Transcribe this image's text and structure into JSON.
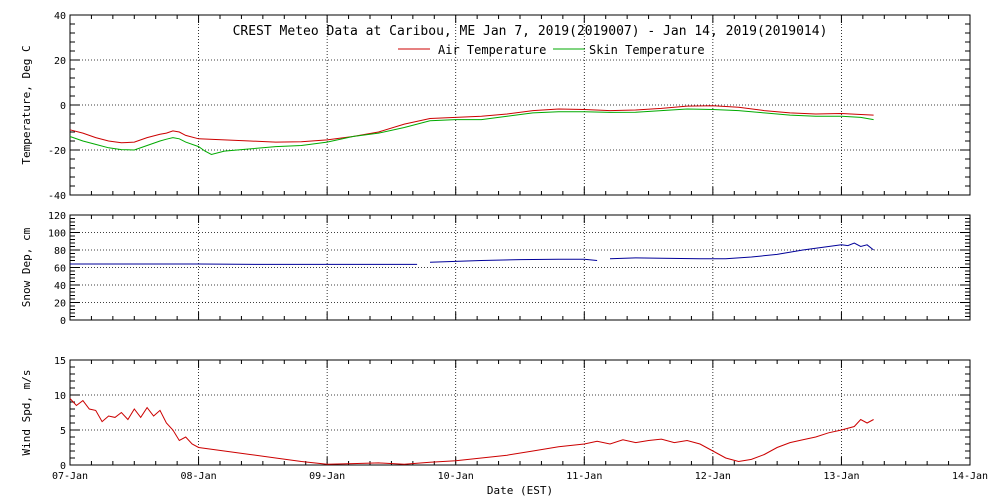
{
  "chart_data": [
    {
      "type": "line",
      "title": "CREST Meteo Data at Caribou, ME   Jan  7, 2019(2019007) - Jan 14, 2019(2019014)",
      "ylabel": "Temperature, Deg C",
      "xlabel": "",
      "x_range": [
        "2019-01-07 00:00",
        "2019-01-14 00:00"
      ],
      "ylim": [
        -40,
        40
      ],
      "yticks": [
        -40,
        -20,
        0,
        20,
        40
      ],
      "grid": true,
      "legend_placement": "top-center",
      "series": [
        {
          "name": "Air Temperature",
          "color": "#cc0000",
          "points": [
            [
              0,
              -11
            ],
            [
              0.1,
              -12.5
            ],
            [
              0.2,
              -14.5
            ],
            [
              0.3,
              -16
            ],
            [
              0.4,
              -16.8
            ],
            [
              0.5,
              -16.5
            ],
            [
              0.6,
              -14.5
            ],
            [
              0.7,
              -13
            ],
            [
              0.75,
              -12.5
            ],
            [
              0.8,
              -11.5
            ],
            [
              0.85,
              -12
            ],
            [
              0.9,
              -13.5
            ],
            [
              1.0,
              -15
            ],
            [
              1.2,
              -15.5
            ],
            [
              1.4,
              -16
            ],
            [
              1.6,
              -16.5
            ],
            [
              1.8,
              -16.3
            ],
            [
              2.0,
              -15.5
            ],
            [
              2.2,
              -14
            ],
            [
              2.4,
              -12
            ],
            [
              2.6,
              -8.5
            ],
            [
              2.8,
              -6
            ],
            [
              3.0,
              -5.5
            ],
            [
              3.2,
              -5
            ],
            [
              3.4,
              -4
            ],
            [
              3.6,
              -2.5
            ],
            [
              3.8,
              -1.8
            ],
            [
              4.0,
              -2
            ],
            [
              4.2,
              -2.5
            ],
            [
              4.4,
              -2.2
            ],
            [
              4.6,
              -1.5
            ],
            [
              4.8,
              -0.5
            ],
            [
              5.0,
              -0.3
            ],
            [
              5.2,
              -1
            ],
            [
              5.4,
              -2.5
            ],
            [
              5.6,
              -3.5
            ],
            [
              5.8,
              -4
            ],
            [
              6.0,
              -3.8
            ],
            [
              6.15,
              -4.2
            ],
            [
              6.25,
              -4.5
            ]
          ]
        },
        {
          "name": "Skin Temperature",
          "color": "#00aa00",
          "points": [
            [
              0,
              -14
            ],
            [
              0.1,
              -16
            ],
            [
              0.2,
              -17.5
            ],
            [
              0.3,
              -19
            ],
            [
              0.4,
              -19.8
            ],
            [
              0.5,
              -20
            ],
            [
              0.6,
              -18
            ],
            [
              0.7,
              -16
            ],
            [
              0.75,
              -15.2
            ],
            [
              0.8,
              -14.5
            ],
            [
              0.85,
              -15
            ],
            [
              0.9,
              -16.5
            ],
            [
              1.0,
              -18.5
            ],
            [
              1.05,
              -20.5
            ],
            [
              1.1,
              -22
            ],
            [
              1.2,
              -20.5
            ],
            [
              1.4,
              -19.5
            ],
            [
              1.6,
              -18.5
            ],
            [
              1.8,
              -18
            ],
            [
              2.0,
              -16.5
            ],
            [
              2.2,
              -14
            ],
            [
              2.4,
              -12.5
            ],
            [
              2.6,
              -10
            ],
            [
              2.8,
              -7
            ],
            [
              3.0,
              -6.5
            ],
            [
              3.2,
              -6.5
            ],
            [
              3.4,
              -5
            ],
            [
              3.6,
              -3.5
            ],
            [
              3.8,
              -3
            ],
            [
              4.0,
              -3
            ],
            [
              4.2,
              -3.3
            ],
            [
              4.4,
              -3.2
            ],
            [
              4.6,
              -2.5
            ],
            [
              4.8,
              -1.8
            ],
            [
              5.0,
              -2
            ],
            [
              5.2,
              -2.5
            ],
            [
              5.4,
              -3.5
            ],
            [
              5.6,
              -4.5
            ],
            [
              5.8,
              -5
            ],
            [
              6.0,
              -5
            ],
            [
              6.15,
              -5.5
            ],
            [
              6.25,
              -6.5
            ]
          ]
        }
      ]
    },
    {
      "type": "line",
      "ylabel": "Snow Dep, cm",
      "xlabel": "",
      "x_range": [
        "2019-01-07 00:00",
        "2019-01-14 00:00"
      ],
      "ylim": [
        0,
        120
      ],
      "yticks": [
        0,
        20,
        40,
        60,
        80,
        100,
        120
      ],
      "grid": true,
      "series": [
        {
          "color": "#000099",
          "points": [
            [
              0,
              64
            ],
            [
              0.5,
              64
            ],
            [
              1.0,
              64
            ],
            [
              1.5,
              63.5
            ],
            [
              2.0,
              63.5
            ],
            [
              2.5,
              63.5
            ],
            [
              2.7,
              63.5
            ],
            [
              2.75,
              null
            ],
            [
              2.8,
              66
            ],
            [
              3.0,
              67
            ],
            [
              3.2,
              68
            ],
            [
              3.5,
              69
            ],
            [
              3.8,
              69.5
            ],
            [
              4.0,
              69.5
            ],
            [
              4.1,
              68
            ],
            [
              4.15,
              null
            ],
            [
              4.2,
              70
            ],
            [
              4.4,
              71
            ],
            [
              4.6,
              70.5
            ],
            [
              4.9,
              70
            ],
            [
              5.1,
              70
            ],
            [
              5.3,
              72
            ],
            [
              5.5,
              75
            ],
            [
              5.7,
              80
            ],
            [
              5.8,
              82
            ],
            [
              5.9,
              84
            ],
            [
              6.0,
              86
            ],
            [
              6.05,
              85
            ],
            [
              6.1,
              88
            ],
            [
              6.15,
              84
            ],
            [
              6.2,
              86
            ],
            [
              6.25,
              80
            ]
          ]
        }
      ]
    },
    {
      "type": "line",
      "ylabel": "Wind Spd, m/s",
      "xlabel": "Date (EST)",
      "x_range": [
        "2019-01-07 00:00",
        "2019-01-14 00:00"
      ],
      "ylim": [
        0,
        15
      ],
      "yticks": [
        0,
        5,
        10,
        15
      ],
      "xtick_labels": [
        "07-Jan",
        "08-Jan",
        "09-Jan",
        "10-Jan",
        "11-Jan",
        "12-Jan",
        "13-Jan",
        "14-Jan"
      ],
      "grid": true,
      "series": [
        {
          "color": "#cc0000",
          "points": [
            [
              0,
              9.5
            ],
            [
              0.05,
              8.5
            ],
            [
              0.1,
              9.2
            ],
            [
              0.15,
              8
            ],
            [
              0.2,
              7.8
            ],
            [
              0.25,
              6.2
            ],
            [
              0.3,
              7
            ],
            [
              0.35,
              6.8
            ],
            [
              0.4,
              7.5
            ],
            [
              0.45,
              6.5
            ],
            [
              0.5,
              8
            ],
            [
              0.55,
              6.8
            ],
            [
              0.6,
              8.2
            ],
            [
              0.65,
              7
            ],
            [
              0.7,
              7.8
            ],
            [
              0.75,
              6
            ],
            [
              0.8,
              5
            ],
            [
              0.85,
              3.5
            ],
            [
              0.9,
              4
            ],
            [
              0.95,
              3
            ],
            [
              1.0,
              2.5
            ],
            [
              1.2,
              2
            ],
            [
              1.4,
              1.5
            ],
            [
              1.6,
              1
            ],
            [
              1.8,
              0.5
            ],
            [
              2.0,
              0.1
            ],
            [
              2.2,
              0.2
            ],
            [
              2.4,
              0.3
            ],
            [
              2.6,
              0.1
            ],
            [
              2.8,
              0.4
            ],
            [
              3.0,
              0.6
            ],
            [
              3.2,
              1
            ],
            [
              3.4,
              1.4
            ],
            [
              3.6,
              2
            ],
            [
              3.8,
              2.6
            ],
            [
              4.0,
              3
            ],
            [
              4.1,
              3.4
            ],
            [
              4.2,
              3
            ],
            [
              4.3,
              3.6
            ],
            [
              4.4,
              3.2
            ],
            [
              4.5,
              3.5
            ],
            [
              4.6,
              3.7
            ],
            [
              4.7,
              3.2
            ],
            [
              4.8,
              3.5
            ],
            [
              4.9,
              3
            ],
            [
              5.0,
              2
            ],
            [
              5.1,
              1
            ],
            [
              5.2,
              0.5
            ],
            [
              5.3,
              0.8
            ],
            [
              5.4,
              1.5
            ],
            [
              5.5,
              2.5
            ],
            [
              5.6,
              3.2
            ],
            [
              5.7,
              3.6
            ],
            [
              5.8,
              4
            ],
            [
              5.9,
              4.6
            ],
            [
              6.0,
              5
            ],
            [
              6.1,
              5.5
            ],
            [
              6.15,
              6.5
            ],
            [
              6.2,
              6
            ],
            [
              6.25,
              6.5
            ]
          ]
        }
      ]
    }
  ]
}
